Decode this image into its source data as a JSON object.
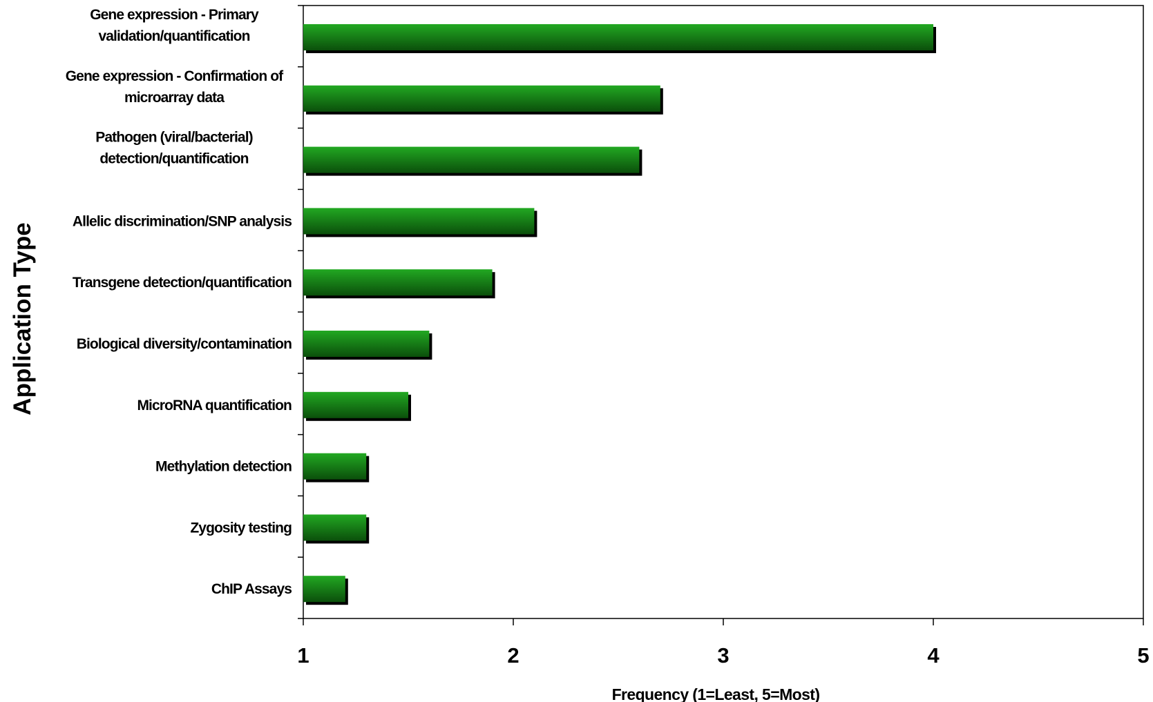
{
  "chart_data": {
    "type": "bar",
    "orientation": "horizontal",
    "title": "",
    "xlabel": "Frequency (1=Least, 5=Most)",
    "ylabel": "Application Type",
    "xlim": [
      1,
      5
    ],
    "x_ticks": [
      "1",
      "2",
      "3",
      "4",
      "5"
    ],
    "grid": false,
    "legend": "none",
    "bar_color": "#22a822",
    "bar_color_dark": "#0b4f0b",
    "shadow_color": "#000000",
    "categories": [
      [
        "Gene expression - Primary",
        "validation/quantification"
      ],
      [
        "Gene expression - Confirmation of",
        "microarray data"
      ],
      [
        "Pathogen (viral/bacterial)",
        "detection/quantification"
      ],
      [
        "Allelic discrimination/SNP analysis"
      ],
      [
        "Transgene detection/quantification"
      ],
      [
        "Biological diversity/contamination"
      ],
      [
        "MicroRNA quantification"
      ],
      [
        "Methylation detection"
      ],
      [
        "Zygosity testing"
      ],
      [
        "ChIP Assays"
      ]
    ],
    "values": [
      4.0,
      2.7,
      2.6,
      2.1,
      1.9,
      1.6,
      1.5,
      1.3,
      1.3,
      1.2
    ]
  }
}
